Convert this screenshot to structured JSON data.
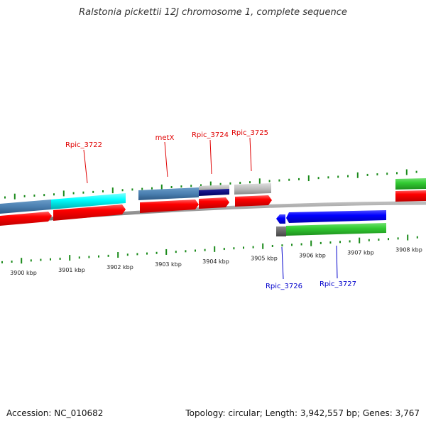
{
  "title": "Ralstonia pickettii 12J chromosome 1, complete sequence",
  "footer": {
    "accession": "Accession: NC_010682",
    "topology": "Topology: circular; Length: 3,942,557 bp; Genes: 3,767"
  },
  "colors": {
    "forward_label": "#e00000",
    "reverse_label": "#0000cc",
    "tick": "#1a8a1a",
    "backbone": "#888888",
    "cds_red": "#ff0000",
    "steelblue": "#4a7fb0",
    "cyan": "#00ffff",
    "navy": "#000080",
    "gray": "#bbbbbb",
    "dark_gray": "#666666",
    "blue": "#0000ff",
    "green": "#33cc33"
  },
  "scale": {
    "ticks_upper": [
      "3900 kbp",
      "3901 kbp",
      "3902 kbp",
      "3903 kbp",
      "3904 kbp",
      "3905 kbp",
      "3906 kbp",
      "3907 kbp",
      "3908 kbp"
    ]
  },
  "genes_forward": [
    {
      "label": "Rpic_3722"
    },
    {
      "label": "metX"
    },
    {
      "label": "Rpic_3724"
    },
    {
      "label": "Rpic_3725"
    }
  ],
  "genes_reverse": [
    {
      "label": "Rpic_3726"
    },
    {
      "label": "Rpic_3727"
    }
  ]
}
